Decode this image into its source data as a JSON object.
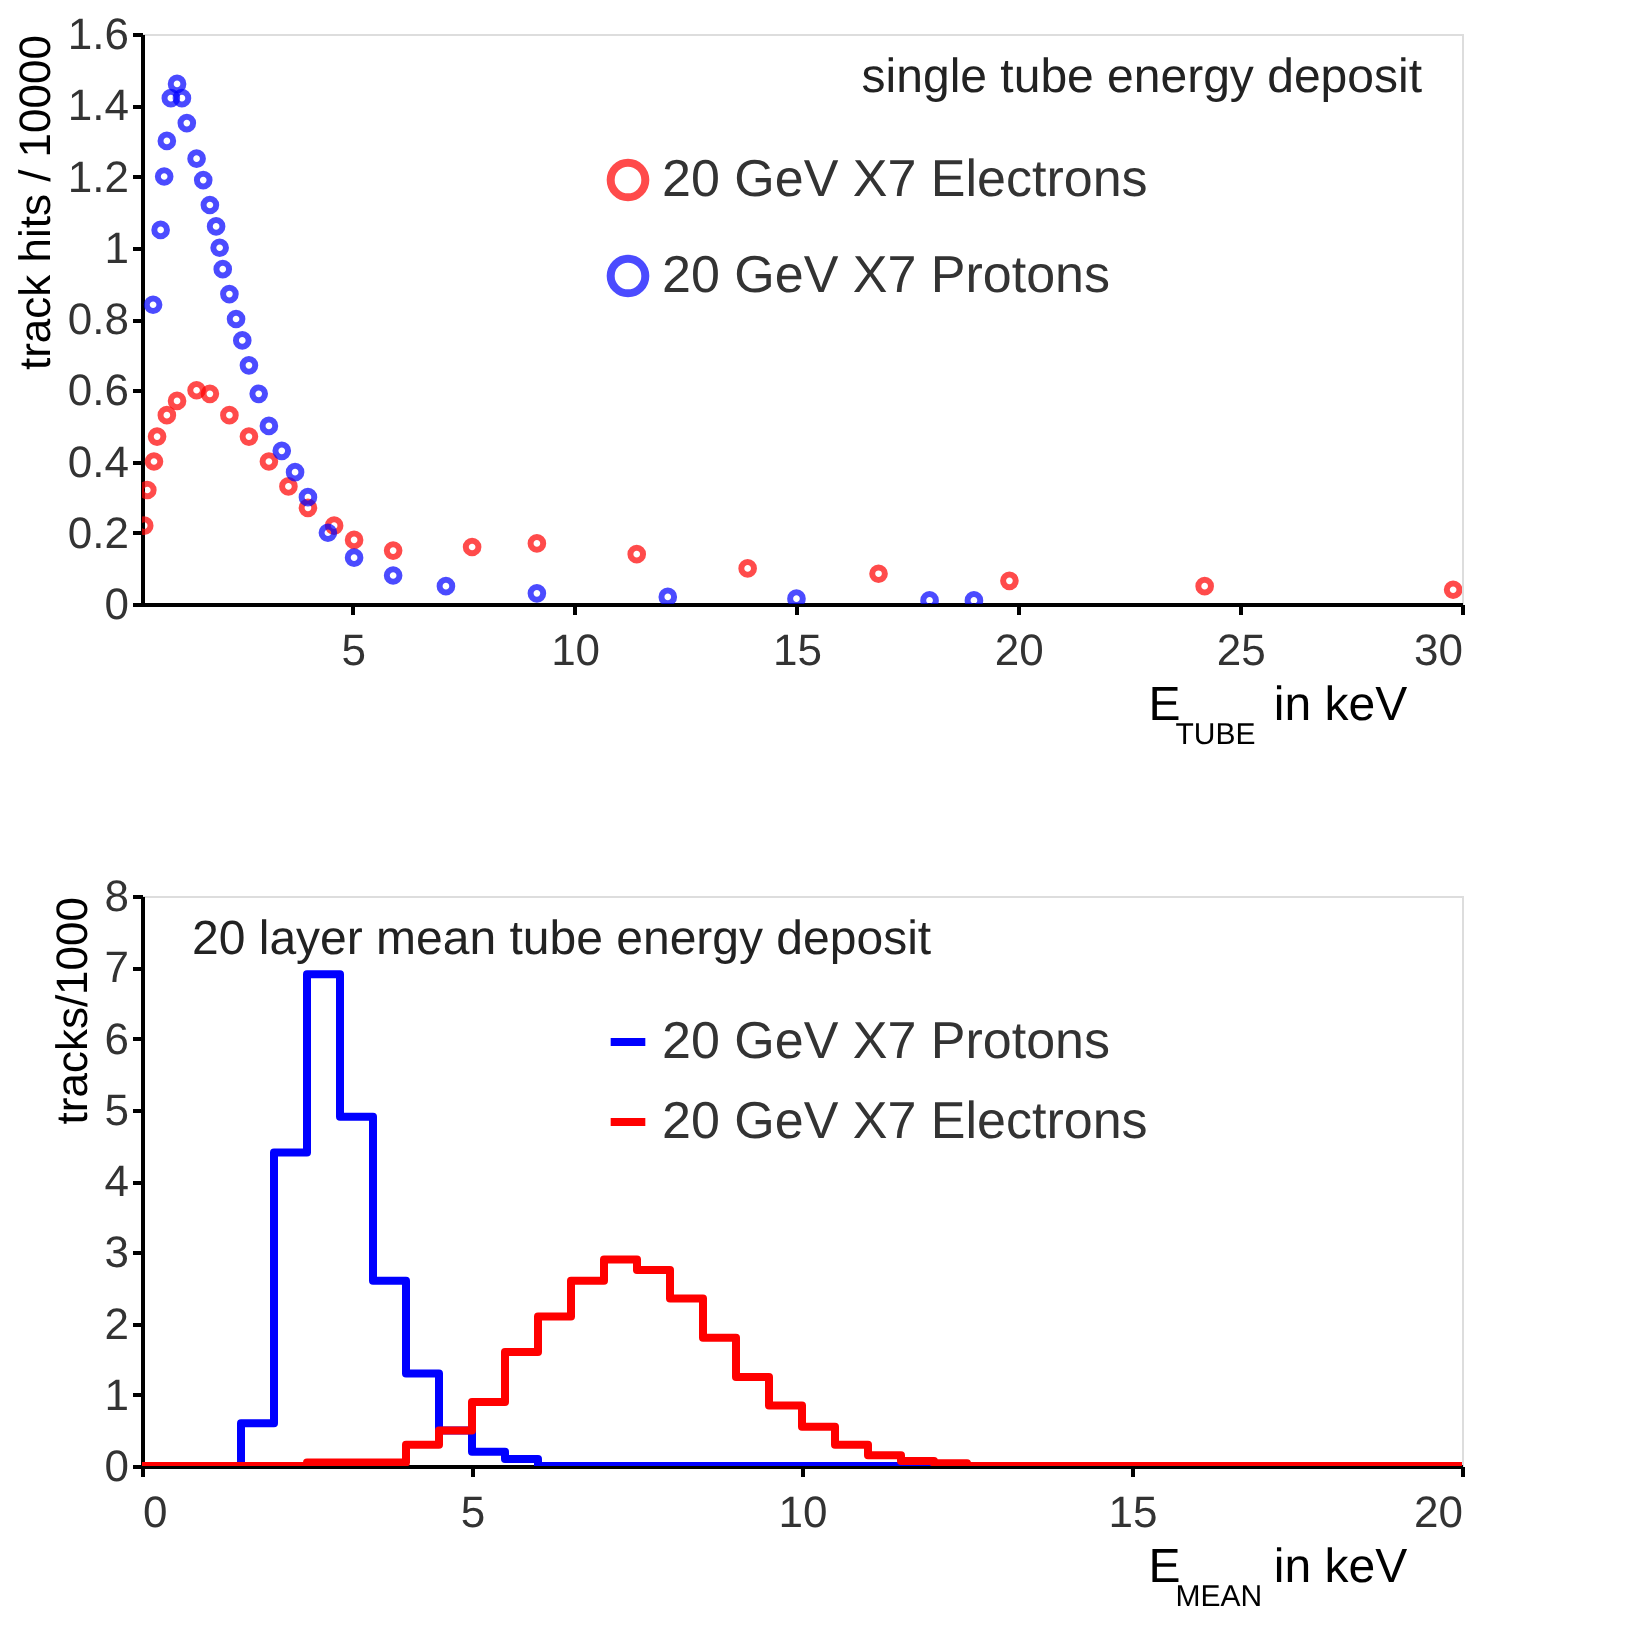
{
  "chart_data": [
    {
      "type": "scatter",
      "title": "single tube energy deposit",
      "xlabel": "E$_{TUBE}$ in keV",
      "ylabel": "track hits / 10000",
      "xlim": [
        0.25,
        30
      ],
      "ylim": [
        0,
        1.6
      ],
      "xticks": [
        5,
        10,
        15,
        20,
        25,
        30
      ],
      "yticks": [
        0,
        0.2,
        0.4,
        0.6,
        0.8,
        1,
        1.2,
        1.4,
        1.6
      ],
      "grid": false,
      "legend": "top right",
      "marker": "circle",
      "series": [
        {
          "name": "20 GeV X7 Electrons",
          "color": "#ff0000",
          "x": [
            0.3,
            0.37,
            0.52,
            0.59,
            0.81,
            1.04,
            1.48,
            1.78,
            2.22,
            2.66,
            3.11,
            3.55,
            3.99,
            4.58,
            5.03,
            5.91,
            7.69,
            9.15,
            11.4,
            13.9,
            16.85,
            19.8,
            24.2,
            29.8
          ],
          "values": [
            0.22,
            0.32,
            0.4,
            0.47,
            0.53,
            0.57,
            0.6,
            0.59,
            0.53,
            0.47,
            0.4,
            0.33,
            0.27,
            0.22,
            0.18,
            0.15,
            0.16,
            0.17,
            0.14,
            0.1,
            0.085,
            0.065,
            0.05,
            0.04
          ]
        },
        {
          "name": "20 GeV X7 Protons",
          "color": "#0000ff",
          "x": [
            0.5,
            0.67,
            0.75,
            0.81,
            0.9,
            1.04,
            1.15,
            1.26,
            1.48,
            1.63,
            1.78,
            1.92,
            2.0,
            2.07,
            2.22,
            2.37,
            2.51,
            2.66,
            2.88,
            3.11,
            3.4,
            3.7,
            3.99,
            4.44,
            5.03,
            5.91,
            7.1,
            9.15,
            12.1,
            15,
            18,
            19
          ],
          "values": [
            0.84,
            1.05,
            1.2,
            1.3,
            1.42,
            1.46,
            1.42,
            1.35,
            1.25,
            1.19,
            1.12,
            1.06,
            1.0,
            0.94,
            0.87,
            0.8,
            0.74,
            0.67,
            0.59,
            0.5,
            0.43,
            0.37,
            0.3,
            0.2,
            0.13,
            0.08,
            0.05,
            0.03,
            0.02,
            0.015,
            0.01,
            0.01
          ]
        }
      ]
    },
    {
      "type": "histogram",
      "title": "20 layer mean tube energy deposit",
      "xlabel": "E$_{MEAN}$ in keV",
      "ylabel": "tracks/1000",
      "xlim": [
        0,
        20
      ],
      "ylim": [
        0,
        8
      ],
      "xticks": [
        0,
        5,
        10,
        15,
        20
      ],
      "yticks": [
        0,
        1,
        2,
        3,
        4,
        5,
        6,
        7,
        8
      ],
      "grid": false,
      "legend": "top right",
      "bins": [
        0,
        0.5,
        1,
        1.5,
        2,
        2.5,
        3,
        3.5,
        4,
        4.5,
        5,
        5.5,
        6,
        6.5,
        7,
        7.5,
        8,
        8.5,
        9,
        9.5,
        10,
        10.5,
        11,
        11.5,
        12,
        12.5,
        13,
        13.5,
        14,
        14.5,
        15,
        15.5,
        16,
        16.5,
        17,
        17.5,
        18,
        18.5,
        19,
        19.5,
        20
      ],
      "series": [
        {
          "name": "20 GeV X7 Protons",
          "color": "#0000ff",
          "values": [
            0,
            0,
            0,
            0.6,
            4.4,
            6.9,
            4.9,
            2.6,
            1.3,
            0.5,
            0.2,
            0.1,
            0,
            0,
            0,
            0,
            0,
            0,
            0,
            0,
            0,
            0,
            0,
            0,
            0,
            0,
            0,
            0,
            0,
            0,
            0,
            0,
            0,
            0,
            0,
            0,
            0,
            0,
            0,
            0
          ]
        },
        {
          "name": "20 GeV X7 Electrons",
          "color": "#ff0000",
          "values": [
            0,
            0,
            0,
            0,
            0,
            0.05,
            0.05,
            0.05,
            0.3,
            0.5,
            0.9,
            1.6,
            2.1,
            2.6,
            2.9,
            2.75,
            2.35,
            1.8,
            1.25,
            0.85,
            0.55,
            0.3,
            0.15,
            0.07,
            0.04,
            0,
            0,
            0,
            0,
            0,
            0,
            0,
            0,
            0,
            0,
            0,
            0,
            0,
            0,
            0
          ]
        }
      ]
    }
  ]
}
